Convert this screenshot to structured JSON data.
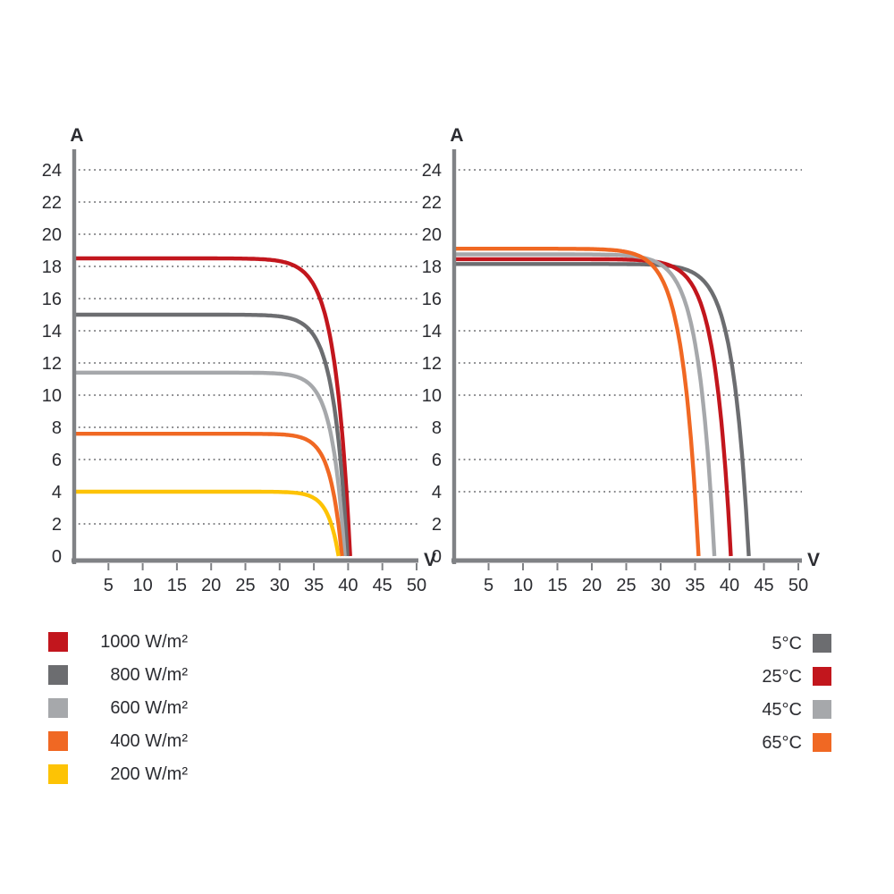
{
  "page": {
    "background": "#ffffff"
  },
  "colors": {
    "red": "#C2161D",
    "dark_gray": "#6C6D70",
    "light_gray": "#A6A8AB",
    "orange": "#F06823",
    "yellow": "#FDC305",
    "axis": "#808285",
    "grid": "#77787B",
    "text": "#2B2C31"
  },
  "chart_data": [
    {
      "id": "irradiance-iv-chart",
      "type": "line",
      "title": "",
      "xlabel": "V",
      "ylabel": "A",
      "xlim": [
        0,
        50
      ],
      "ylim": [
        0,
        24
      ],
      "x_ticks": [
        5,
        10,
        15,
        20,
        25,
        30,
        35,
        40,
        45,
        50
      ],
      "y_ticks": [
        0,
        2,
        4,
        6,
        8,
        10,
        12,
        14,
        16,
        18,
        20,
        22,
        24
      ],
      "gridlines": [
        2,
        4,
        6,
        8,
        10,
        12,
        14,
        16,
        18,
        20,
        22,
        24
      ],
      "grid_style": "dotted",
      "legend_position": "bottom-left",
      "series": [
        {
          "label": "1000 W/m²",
          "color": "#C2161D",
          "isc": 18.5,
          "voc": 40.3,
          "knee_vt": 2.2
        },
        {
          "label": "800 W/m²",
          "color": "#6C6D70",
          "isc": 15.0,
          "voc": 39.9,
          "knee_vt": 2.0
        },
        {
          "label": "600 W/m²",
          "color": "#A6A8AB",
          "isc": 11.4,
          "voc": 39.5,
          "knee_vt": 1.85
        },
        {
          "label": "400 W/m²",
          "color": "#F06823",
          "isc": 7.6,
          "voc": 39.1,
          "knee_vt": 1.7
        },
        {
          "label": "200 W/m²",
          "color": "#FDC305",
          "isc": 4.0,
          "voc": 38.6,
          "knee_vt": 1.55
        }
      ]
    },
    {
      "id": "temperature-iv-chart",
      "type": "line",
      "title": "",
      "xlabel": "V",
      "ylabel": "A",
      "xlim": [
        0,
        50
      ],
      "ylim": [
        0,
        24
      ],
      "x_ticks": [
        5,
        10,
        15,
        20,
        25,
        30,
        35,
        40,
        45,
        50
      ],
      "y_ticks": [
        0,
        2,
        4,
        6,
        8,
        10,
        12,
        14,
        16,
        18,
        20,
        22,
        24
      ],
      "gridlines": [
        4,
        6,
        10,
        12,
        14,
        24
      ],
      "grid_style": "dotted",
      "legend_position": "bottom-right",
      "series": [
        {
          "label": "5°C",
          "color": "#6C6D70",
          "isc": 18.15,
          "voc": 42.8,
          "knee_vt": 2.3
        },
        {
          "label": "25°C",
          "color": "#C2161D",
          "isc": 18.45,
          "voc": 40.2,
          "knee_vt": 2.3
        },
        {
          "label": "45°C",
          "color": "#A6A8AB",
          "isc": 18.75,
          "voc": 37.8,
          "knee_vt": 2.3
        },
        {
          "label": "65°C",
          "color": "#F06823",
          "isc": 19.1,
          "voc": 35.5,
          "knee_vt": 2.3
        }
      ]
    }
  ]
}
